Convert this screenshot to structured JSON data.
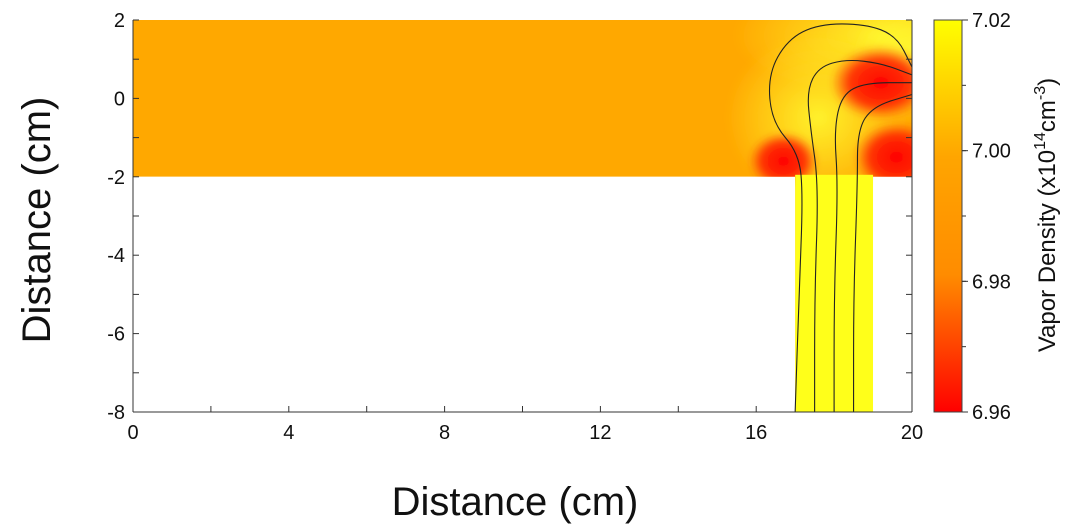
{
  "chart_data": {
    "type": "heatmap",
    "title": "",
    "xlabel": "Distance (cm)",
    "ylabel": "Distance (cm)",
    "xlim": [
      0,
      20
    ],
    "ylim": [
      -8,
      2
    ],
    "x_ticks": [
      0,
      4,
      8,
      12,
      16,
      20
    ],
    "y_ticks": [
      2,
      0,
      -2,
      -4,
      -6,
      -8
    ],
    "x_minor_step": 2,
    "y_minor_step": 1,
    "grid": false,
    "colorbar": {
      "label_main": "Vapor Density (x10",
      "label_exp1": "14",
      "label_mid": "cm",
      "label_exp2": "-3",
      "label_end": ")",
      "min": 6.96,
      "max": 7.02,
      "ticks": [
        7.02,
        7.0,
        6.98,
        6.96
      ],
      "colors": [
        "#ff0000",
        "#ff8c00",
        "#ffa500",
        "#ffff00"
      ]
    },
    "domain_regions": [
      {
        "name": "main-chamber",
        "x": [
          0,
          20
        ],
        "y": [
          -2,
          2
        ]
      },
      {
        "name": "outlet-channel",
        "x": [
          17,
          19
        ],
        "y": [
          -8,
          -2
        ]
      }
    ],
    "field_summary": {
      "background_value": 7.005,
      "high_value_regions": [
        "near x=17–19 channel entrance",
        "right edge y≈2",
        "outlet channel"
      ],
      "low_value_regions": [
        "x≈16.8, y≈-1.5",
        "x≈19, y≈0",
        "x≈19.5, y≈-1.5"
      ]
    },
    "streamlines": [
      [
        [
          17,
          -8
        ],
        [
          17.1,
          -5
        ],
        [
          17.2,
          -2.5
        ],
        [
          17.1,
          -1.4
        ],
        [
          16.4,
          -0.6
        ],
        [
          16.3,
          0.6
        ],
        [
          16.8,
          1.5
        ],
        [
          17.6,
          1.9
        ],
        [
          18.8,
          1.9
        ],
        [
          19.6,
          1.6
        ],
        [
          20,
          0.8
        ]
      ],
      [
        [
          17.5,
          -8
        ],
        [
          17.5,
          -5
        ],
        [
          17.6,
          -2.2
        ],
        [
          17.4,
          -0.8
        ],
        [
          17.3,
          0.2
        ],
        [
          17.6,
          0.8
        ],
        [
          18.3,
          1.0
        ],
        [
          19.2,
          0.9
        ],
        [
          20,
          0.6
        ]
      ],
      [
        [
          18,
          -8
        ],
        [
          18,
          -5
        ],
        [
          18.1,
          -2.2
        ],
        [
          18,
          -0.8
        ],
        [
          18.2,
          0.1
        ],
        [
          18.8,
          0.4
        ],
        [
          20,
          0.4
        ]
      ],
      [
        [
          18.5,
          -8
        ],
        [
          18.5,
          -5
        ],
        [
          18.6,
          -2.2
        ],
        [
          18.6,
          -0.8
        ],
        [
          19,
          -0.2
        ],
        [
          20,
          0.1
        ]
      ]
    ]
  }
}
